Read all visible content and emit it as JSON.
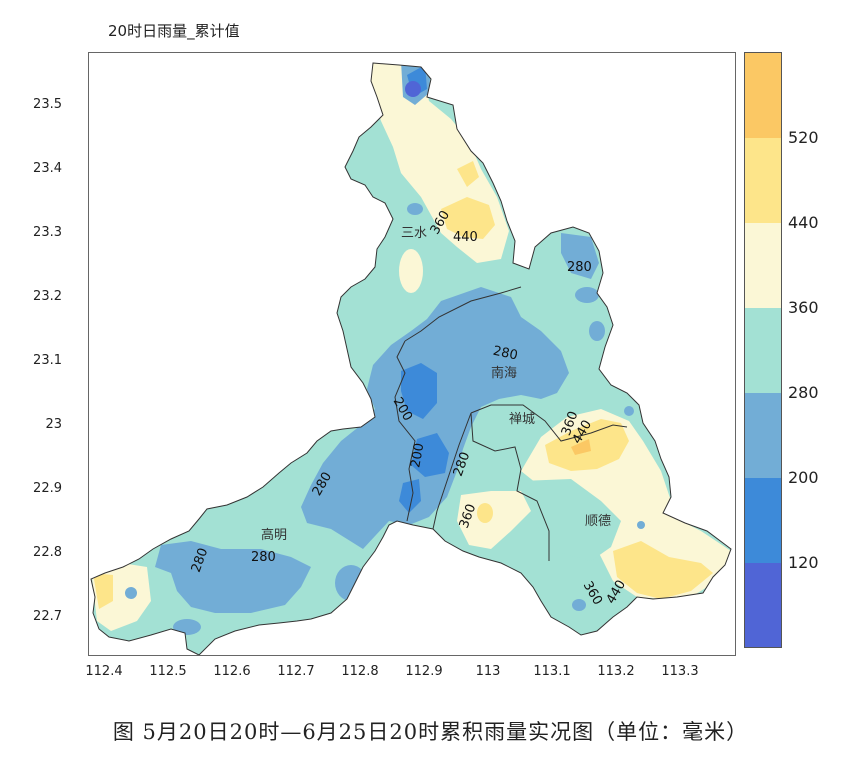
{
  "title": "20时日雨量_累计值",
  "caption": "图 5月20日20时—6月25日20时累积雨量实况图（单位：毫米）",
  "y_ticks": [
    "23.5",
    "23.4",
    "23.3",
    "23.2",
    "23.1",
    "23",
    "22.9",
    "22.8",
    "22.7"
  ],
  "x_ticks": [
    "112.4",
    "112.5",
    "112.6",
    "112.7",
    "112.8",
    "112.9",
    "113",
    "113.1",
    "113.2",
    "113.3"
  ],
  "places": {
    "sanshui": "三水",
    "nanhai": "南海",
    "chancheng": "禅城",
    "shunde": "顺德",
    "gaoming": "高明"
  },
  "contour_labels": {
    "c1": "360",
    "c2": "440",
    "c3": "280",
    "c4": "280",
    "c5": "200",
    "c6": "200",
    "c7": "280",
    "c8": "360",
    "c9": "360",
    "c10": "440",
    "c11": "280",
    "c12": "280",
    "c13": "280",
    "c14": "360",
    "c15": "440"
  },
  "legend": {
    "labels": [
      "520",
      "440",
      "360",
      "280",
      "200",
      "120"
    ],
    "colors": [
      "#fbc864",
      "#fde58a",
      "#fbf7d6",
      "#a3e1d4",
      "#72add6",
      "#3d8ad9",
      "#5065d6"
    ]
  },
  "colors": {
    "c_white": "#ffffff",
    "c_yellow_light": "#fbf7d6",
    "c_yellow": "#fde58a",
    "c_orange": "#fbc864",
    "c_teal": "#a3e1d4",
    "c_blue_mid": "#72add6",
    "c_blue": "#3d8ad9",
    "c_purple": "#5065d6",
    "c_border": "#333333"
  }
}
